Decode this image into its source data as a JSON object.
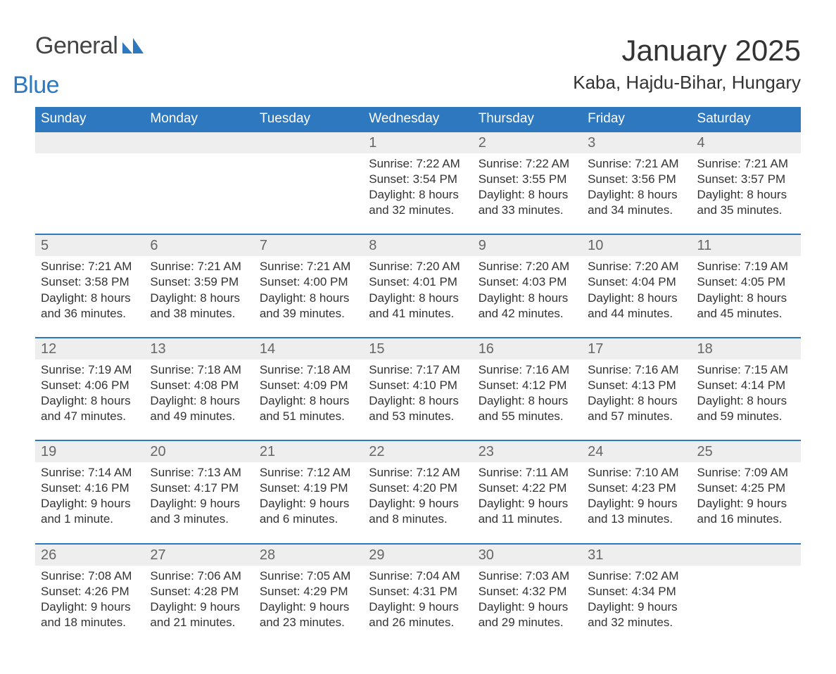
{
  "brand": {
    "general": "General",
    "blue": "Blue",
    "mark_color": "#2d78bf"
  },
  "title": "January 2025",
  "location": "Kaba, Hajdu-Bihar, Hungary",
  "colors": {
    "header_bg": "#2d78bf",
    "header_text": "#ffffff",
    "daynum_bg": "#eeeeee",
    "daynum_text": "#666666",
    "body_text": "#333333",
    "row_divider": "#2d78bf",
    "page_bg": "#ffffff"
  },
  "weekdays": [
    "Sunday",
    "Monday",
    "Tuesday",
    "Wednesday",
    "Thursday",
    "Friday",
    "Saturday"
  ],
  "weeks": [
    {
      "nums": [
        "",
        "",
        "",
        "1",
        "2",
        "3",
        "4"
      ],
      "cells": [
        null,
        null,
        null,
        {
          "sunrise": "Sunrise: 7:22 AM",
          "sunset": "Sunset: 3:54 PM",
          "day1": "Daylight: 8 hours",
          "day2": "and 32 minutes."
        },
        {
          "sunrise": "Sunrise: 7:22 AM",
          "sunset": "Sunset: 3:55 PM",
          "day1": "Daylight: 8 hours",
          "day2": "and 33 minutes."
        },
        {
          "sunrise": "Sunrise: 7:21 AM",
          "sunset": "Sunset: 3:56 PM",
          "day1": "Daylight: 8 hours",
          "day2": "and 34 minutes."
        },
        {
          "sunrise": "Sunrise: 7:21 AM",
          "sunset": "Sunset: 3:57 PM",
          "day1": "Daylight: 8 hours",
          "day2": "and 35 minutes."
        }
      ]
    },
    {
      "nums": [
        "5",
        "6",
        "7",
        "8",
        "9",
        "10",
        "11"
      ],
      "cells": [
        {
          "sunrise": "Sunrise: 7:21 AM",
          "sunset": "Sunset: 3:58 PM",
          "day1": "Daylight: 8 hours",
          "day2": "and 36 minutes."
        },
        {
          "sunrise": "Sunrise: 7:21 AM",
          "sunset": "Sunset: 3:59 PM",
          "day1": "Daylight: 8 hours",
          "day2": "and 38 minutes."
        },
        {
          "sunrise": "Sunrise: 7:21 AM",
          "sunset": "Sunset: 4:00 PM",
          "day1": "Daylight: 8 hours",
          "day2": "and 39 minutes."
        },
        {
          "sunrise": "Sunrise: 7:20 AM",
          "sunset": "Sunset: 4:01 PM",
          "day1": "Daylight: 8 hours",
          "day2": "and 41 minutes."
        },
        {
          "sunrise": "Sunrise: 7:20 AM",
          "sunset": "Sunset: 4:03 PM",
          "day1": "Daylight: 8 hours",
          "day2": "and 42 minutes."
        },
        {
          "sunrise": "Sunrise: 7:20 AM",
          "sunset": "Sunset: 4:04 PM",
          "day1": "Daylight: 8 hours",
          "day2": "and 44 minutes."
        },
        {
          "sunrise": "Sunrise: 7:19 AM",
          "sunset": "Sunset: 4:05 PM",
          "day1": "Daylight: 8 hours",
          "day2": "and 45 minutes."
        }
      ]
    },
    {
      "nums": [
        "12",
        "13",
        "14",
        "15",
        "16",
        "17",
        "18"
      ],
      "cells": [
        {
          "sunrise": "Sunrise: 7:19 AM",
          "sunset": "Sunset: 4:06 PM",
          "day1": "Daylight: 8 hours",
          "day2": "and 47 minutes."
        },
        {
          "sunrise": "Sunrise: 7:18 AM",
          "sunset": "Sunset: 4:08 PM",
          "day1": "Daylight: 8 hours",
          "day2": "and 49 minutes."
        },
        {
          "sunrise": "Sunrise: 7:18 AM",
          "sunset": "Sunset: 4:09 PM",
          "day1": "Daylight: 8 hours",
          "day2": "and 51 minutes."
        },
        {
          "sunrise": "Sunrise: 7:17 AM",
          "sunset": "Sunset: 4:10 PM",
          "day1": "Daylight: 8 hours",
          "day2": "and 53 minutes."
        },
        {
          "sunrise": "Sunrise: 7:16 AM",
          "sunset": "Sunset: 4:12 PM",
          "day1": "Daylight: 8 hours",
          "day2": "and 55 minutes."
        },
        {
          "sunrise": "Sunrise: 7:16 AM",
          "sunset": "Sunset: 4:13 PM",
          "day1": "Daylight: 8 hours",
          "day2": "and 57 minutes."
        },
        {
          "sunrise": "Sunrise: 7:15 AM",
          "sunset": "Sunset: 4:14 PM",
          "day1": "Daylight: 8 hours",
          "day2": "and 59 minutes."
        }
      ]
    },
    {
      "nums": [
        "19",
        "20",
        "21",
        "22",
        "23",
        "24",
        "25"
      ],
      "cells": [
        {
          "sunrise": "Sunrise: 7:14 AM",
          "sunset": "Sunset: 4:16 PM",
          "day1": "Daylight: 9 hours",
          "day2": "and 1 minute."
        },
        {
          "sunrise": "Sunrise: 7:13 AM",
          "sunset": "Sunset: 4:17 PM",
          "day1": "Daylight: 9 hours",
          "day2": "and 3 minutes."
        },
        {
          "sunrise": "Sunrise: 7:12 AM",
          "sunset": "Sunset: 4:19 PM",
          "day1": "Daylight: 9 hours",
          "day2": "and 6 minutes."
        },
        {
          "sunrise": "Sunrise: 7:12 AM",
          "sunset": "Sunset: 4:20 PM",
          "day1": "Daylight: 9 hours",
          "day2": "and 8 minutes."
        },
        {
          "sunrise": "Sunrise: 7:11 AM",
          "sunset": "Sunset: 4:22 PM",
          "day1": "Daylight: 9 hours",
          "day2": "and 11 minutes."
        },
        {
          "sunrise": "Sunrise: 7:10 AM",
          "sunset": "Sunset: 4:23 PM",
          "day1": "Daylight: 9 hours",
          "day2": "and 13 minutes."
        },
        {
          "sunrise": "Sunrise: 7:09 AM",
          "sunset": "Sunset: 4:25 PM",
          "day1": "Daylight: 9 hours",
          "day2": "and 16 minutes."
        }
      ]
    },
    {
      "nums": [
        "26",
        "27",
        "28",
        "29",
        "30",
        "31",
        ""
      ],
      "cells": [
        {
          "sunrise": "Sunrise: 7:08 AM",
          "sunset": "Sunset: 4:26 PM",
          "day1": "Daylight: 9 hours",
          "day2": "and 18 minutes."
        },
        {
          "sunrise": "Sunrise: 7:06 AM",
          "sunset": "Sunset: 4:28 PM",
          "day1": "Daylight: 9 hours",
          "day2": "and 21 minutes."
        },
        {
          "sunrise": "Sunrise: 7:05 AM",
          "sunset": "Sunset: 4:29 PM",
          "day1": "Daylight: 9 hours",
          "day2": "and 23 minutes."
        },
        {
          "sunrise": "Sunrise: 7:04 AM",
          "sunset": "Sunset: 4:31 PM",
          "day1": "Daylight: 9 hours",
          "day2": "and 26 minutes."
        },
        {
          "sunrise": "Sunrise: 7:03 AM",
          "sunset": "Sunset: 4:32 PM",
          "day1": "Daylight: 9 hours",
          "day2": "and 29 minutes."
        },
        {
          "sunrise": "Sunrise: 7:02 AM",
          "sunset": "Sunset: 4:34 PM",
          "day1": "Daylight: 9 hours",
          "day2": "and 32 minutes."
        },
        null
      ]
    }
  ]
}
